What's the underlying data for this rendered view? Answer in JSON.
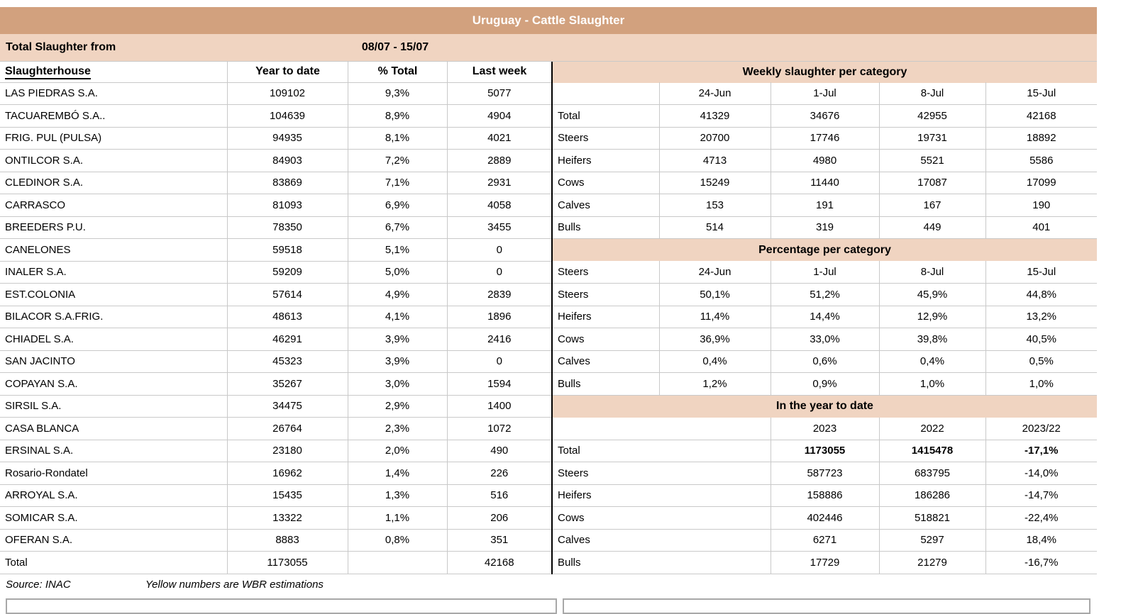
{
  "title": "Uruguay - Cattle Slaughter",
  "period": {
    "label": "Total Slaughter from",
    "range": "08/07 - 15/07"
  },
  "left_table": {
    "headers": [
      "Slaughterhouse",
      "Year to date",
      "% Total",
      "Last week"
    ],
    "rows": [
      [
        "LAS PIEDRAS S.A.",
        "109102",
        "9,3%",
        "5077"
      ],
      [
        "TACUAREMBÓ S.A..",
        "104639",
        "8,9%",
        "4904"
      ],
      [
        "FRIG. PUL (PULSA)",
        "94935",
        "8,1%",
        "4021"
      ],
      [
        "ONTILCOR S.A.",
        "84903",
        "7,2%",
        "2889"
      ],
      [
        "CLEDINOR S.A.",
        "83869",
        "7,1%",
        "2931"
      ],
      [
        "CARRASCO",
        "81093",
        "6,9%",
        "4058"
      ],
      [
        "BREEDERS P.U.",
        "78350",
        "6,7%",
        "3455"
      ],
      [
        "CANELONES",
        "59518",
        "5,1%",
        "0"
      ],
      [
        "INALER S.A.",
        "59209",
        "5,0%",
        "0"
      ],
      [
        "EST.COLONIA",
        "57614",
        "4,9%",
        "2839"
      ],
      [
        "BILACOR S.A.FRIG.",
        "48613",
        "4,1%",
        "1896"
      ],
      [
        "CHIADEL S.A.",
        "46291",
        "3,9%",
        "2416"
      ],
      [
        "SAN JACINTO",
        "45323",
        "3,9%",
        "0"
      ],
      [
        "COPAYAN S.A.",
        "35267",
        "3,0%",
        "1594"
      ],
      [
        "SIRSIL S.A.",
        "34475",
        "2,9%",
        "1400"
      ],
      [
        "CASA BLANCA",
        "26764",
        "2,3%",
        "1072"
      ],
      [
        "ERSINAL S.A.",
        "23180",
        "2,0%",
        "490"
      ],
      [
        "Rosario-Rondatel",
        "16962",
        "1,4%",
        "226"
      ],
      [
        "ARROYAL S.A.",
        "15435",
        "1,3%",
        "516"
      ],
      [
        "SOMICAR S.A.",
        "13322",
        "1,1%",
        "206"
      ],
      [
        "OFERAN S.A.",
        "8883",
        "0,8%",
        "351"
      ]
    ],
    "total_row": [
      "Total",
      "1173055",
      "",
      "42168"
    ]
  },
  "right_table": {
    "weekly": {
      "title": "Weekly slaughter per category",
      "date_headers": [
        "",
        "24-Jun",
        "1-Jul",
        "8-Jul",
        "15-Jul"
      ],
      "rows": [
        [
          "Total",
          "41329",
          "34676",
          "42955",
          "42168"
        ],
        [
          "Steers",
          "20700",
          "17746",
          "19731",
          "18892"
        ],
        [
          "Heifers",
          "4713",
          "4980",
          "5521",
          "5586"
        ],
        [
          "Cows",
          "15249",
          "11440",
          "17087",
          "17099"
        ],
        [
          "Calves",
          "153",
          "191",
          "167",
          "190"
        ],
        [
          "Bulls",
          "514",
          "319",
          "449",
          "401"
        ]
      ]
    },
    "percentage": {
      "title": "Percentage per category",
      "date_headers": [
        "Steers",
        "24-Jun",
        "1-Jul",
        "8-Jul",
        "15-Jul"
      ],
      "rows": [
        [
          "Steers",
          "50,1%",
          "51,2%",
          "45,9%",
          "44,8%"
        ],
        [
          "Heifers",
          "11,4%",
          "14,4%",
          "12,9%",
          "13,2%"
        ],
        [
          "Cows",
          "36,9%",
          "33,0%",
          "39,8%",
          "40,5%"
        ],
        [
          "Calves",
          "0,4%",
          "0,6%",
          "0,4%",
          "0,5%"
        ],
        [
          "Bulls",
          "1,2%",
          "0,9%",
          "1,0%",
          "1,0%"
        ]
      ]
    },
    "ytd": {
      "title": "In the year to date",
      "year_headers": [
        "",
        "2023",
        "2022",
        "2023/22"
      ],
      "rows": [
        [
          "Total",
          "1173055",
          "1415478",
          "-17,1%"
        ],
        [
          "Steers",
          "587723",
          "683795",
          "-14,0%"
        ],
        [
          "Heifers",
          "158886",
          "186286",
          "-14,7%"
        ],
        [
          "Cows",
          "402446",
          "518821",
          "-22,4%"
        ],
        [
          "Calves",
          "6271",
          "5297",
          "18,4%"
        ],
        [
          "Bulls",
          "17729",
          "21279",
          "-16,7%"
        ]
      ]
    }
  },
  "footer": {
    "source": "Source: INAC",
    "note": "Yellow numbers are WBR estimations"
  },
  "colors": {
    "header_dark": "#D2A17E",
    "header_light": "#F0D4C1",
    "grid": "#C9C9C9",
    "divider": "#000000",
    "title_text": "#FFFFFF"
  }
}
